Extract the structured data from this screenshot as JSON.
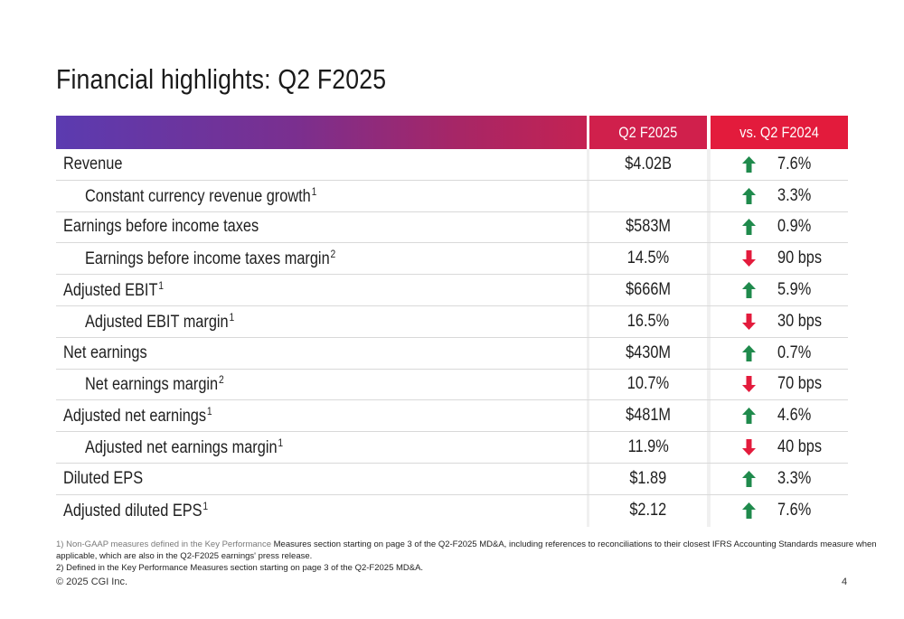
{
  "title": "Financial highlights: Q2 F2025",
  "header": {
    "col1": "Q2 F2025",
    "col2": "vs. Q2 F2024"
  },
  "colors": {
    "up": "#1f8a4c",
    "down": "#e31b3c"
  },
  "rows": [
    {
      "label": "Revenue",
      "sup": "",
      "indent": false,
      "value": "$4.02B",
      "dir": "up",
      "change": "7.6%"
    },
    {
      "label": "Constant currency revenue growth",
      "sup": "1",
      "indent": true,
      "value": "",
      "dir": "up",
      "change": "3.3%"
    },
    {
      "label": "Earnings before income taxes",
      "sup": "",
      "indent": false,
      "value": "$583M",
      "dir": "up",
      "change": "0.9%"
    },
    {
      "label": "Earnings before income taxes margin",
      "sup": "2",
      "indent": true,
      "value": "14.5%",
      "dir": "down",
      "change": "90 bps"
    },
    {
      "label": "Adjusted EBIT",
      "sup": "1",
      "indent": false,
      "value": "$666M",
      "dir": "up",
      "change": "5.9%"
    },
    {
      "label": "Adjusted EBIT margin",
      "sup": "1",
      "indent": true,
      "value": "16.5%",
      "dir": "down",
      "change": "30 bps"
    },
    {
      "label": "Net earnings",
      "sup": "",
      "indent": false,
      "value": "$430M",
      "dir": "up",
      "change": "0.7%"
    },
    {
      "label": "Net earnings margin",
      "sup": "2",
      "indent": true,
      "value": "10.7%",
      "dir": "down",
      "change": "70 bps"
    },
    {
      "label": "Adjusted net earnings",
      "sup": "1",
      "indent": false,
      "value": "$481M",
      "dir": "up",
      "change": "4.6%"
    },
    {
      "label": "Adjusted net earnings margin",
      "sup": "1",
      "indent": true,
      "value": "11.9%",
      "dir": "down",
      "change": "40 bps"
    },
    {
      "label": "Diluted EPS",
      "sup": "",
      "indent": false,
      "value": "$1.89",
      "dir": "up",
      "change": "3.3%"
    },
    {
      "label": "Adjusted diluted EPS",
      "sup": "1",
      "indent": false,
      "value": "$2.12",
      "dir": "up",
      "change": "7.6%"
    }
  ],
  "footnotes": {
    "note1_grey": "1) Non-GAAP measures defined in the Key Performance",
    "note1_rest": " Measures section starting on page 3 of the Q2-F2025 MD&A, including references to reconciliations to their closest IFRS Accounting Standards measure when applicable, which are also in the Q2-F2025 earnings' press release.",
    "note2": "2) Defined in the Key Performance Measures section starting on page 3 of the Q2-F2025 MD&A."
  },
  "copyright": "© 2025 CGI Inc.",
  "page_number": "4"
}
